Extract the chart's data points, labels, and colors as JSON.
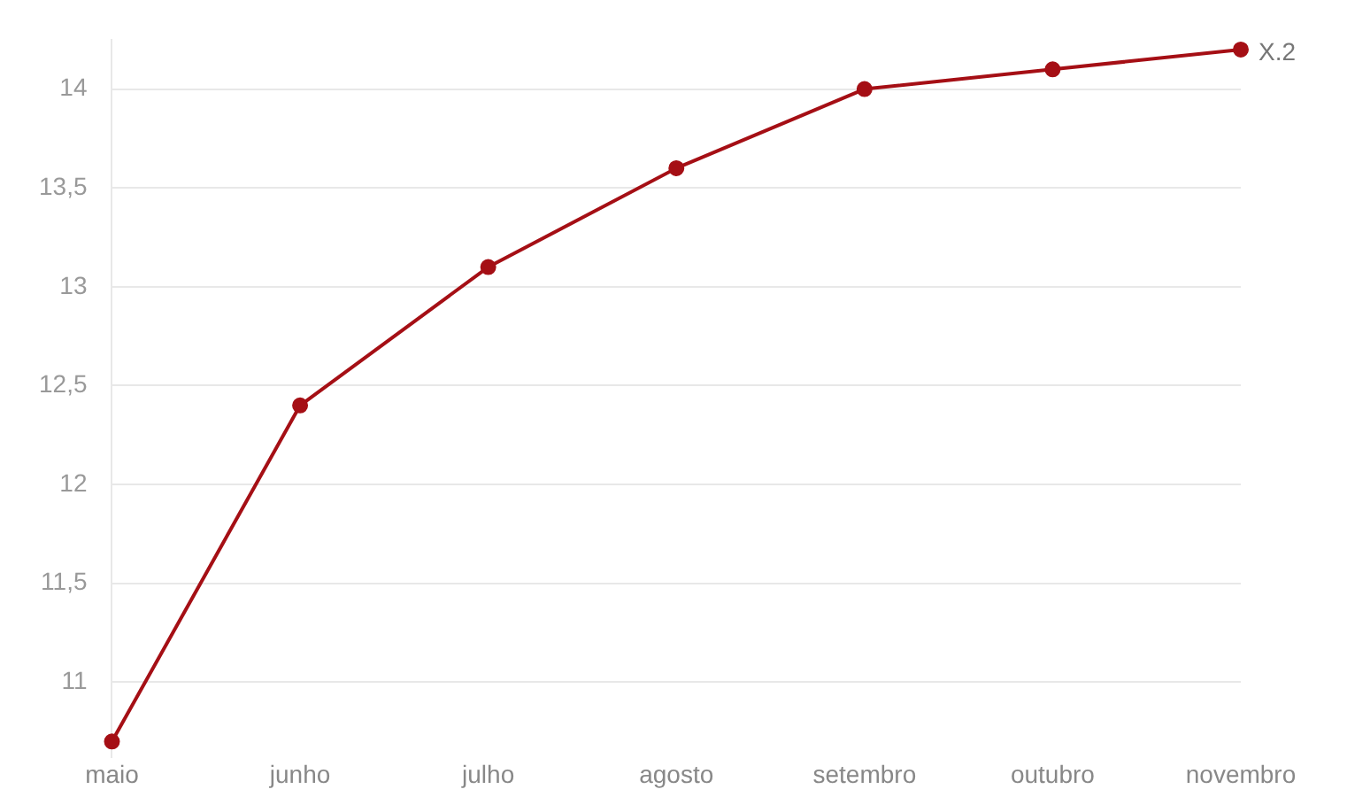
{
  "chart_data": {
    "type": "line",
    "categories": [
      "maio",
      "junho",
      "julho",
      "agosto",
      "setembro",
      "outubro",
      "novembro"
    ],
    "series": [
      {
        "name": "X.2",
        "color": "#a50f15",
        "values": [
          10.7,
          12.4,
          13.1,
          13.6,
          14.0,
          14.1,
          14.2
        ]
      }
    ],
    "ylim": [
      10.62,
      14.25
    ],
    "yticks": [
      11,
      {
        "value": 11.5,
        "label": "11,5"
      },
      12,
      {
        "value": 12.5,
        "label": "12,5"
      },
      13,
      {
        "value": 13.5,
        "label": "13,5"
      },
      14
    ],
    "grid": "y",
    "legend": false,
    "marker": "circle",
    "line_style": "solid"
  }
}
